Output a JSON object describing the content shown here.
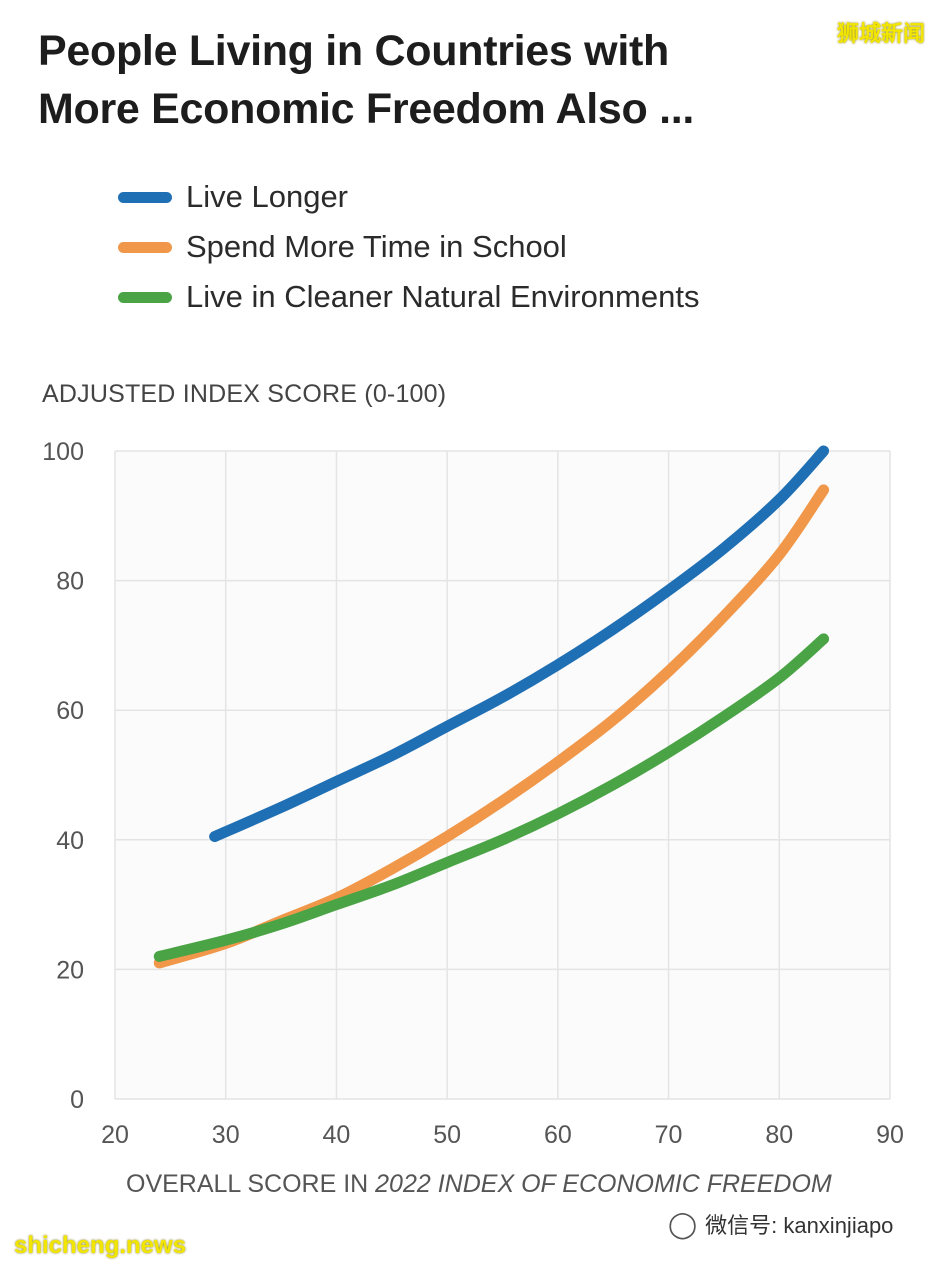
{
  "watermark": {
    "top_right": "狮城新闻",
    "bottom_left": "shicheng.news",
    "wechat_label": "微信号: kanxinjiapo"
  },
  "colors": {
    "live_longer": "#1f6fb5",
    "school": "#f0974a",
    "environment": "#4aa446",
    "grid": "#e4e4e4",
    "axis_text": "#555555"
  },
  "chart_data": {
    "type": "line",
    "title": "People Living in Countries with More Economic Freedom Also ...",
    "title_lines": [
      "People Living in Countries with",
      "More Economic Freedom Also ..."
    ],
    "ylabel": "ADJUSTED INDEX SCORE (0-100)",
    "xlabel_prefix": "OVERALL SCORE IN ",
    "xlabel_italic": "2022 INDEX OF ECONOMIC FREEDOM",
    "xlim": [
      20,
      90
    ],
    "ylim": [
      0,
      100
    ],
    "xticks": [
      20,
      30,
      40,
      50,
      60,
      70,
      80,
      90
    ],
    "yticks": [
      0,
      20,
      40,
      60,
      80,
      100
    ],
    "grid": true,
    "legend_position": "top-left",
    "series": [
      {
        "name": "Live Longer",
        "color_key": "live_longer",
        "x": [
          29,
          35,
          40,
          45,
          50,
          55,
          60,
          65,
          70,
          75,
          80,
          84
        ],
        "y": [
          40.5,
          45,
          49,
          53,
          57.5,
          62,
          67,
          72.5,
          78.5,
          85,
          92.5,
          100
        ]
      },
      {
        "name": "Spend More Time in School",
        "color_key": "school",
        "x": [
          24,
          30,
          35,
          40,
          45,
          50,
          55,
          60,
          65,
          70,
          75,
          80,
          84
        ],
        "y": [
          21,
          24,
          27.5,
          31,
          35.5,
          40.5,
          46,
          52,
          58.5,
          66,
          74.5,
          84,
          94
        ]
      },
      {
        "name": "Live in Cleaner Natural Environments",
        "color_key": "environment",
        "x": [
          24,
          30,
          35,
          40,
          45,
          50,
          55,
          60,
          65,
          70,
          75,
          80,
          84
        ],
        "y": [
          22,
          24.5,
          27,
          30,
          33,
          36.5,
          40,
          44,
          48.5,
          53.5,
          59,
          65,
          71
        ]
      }
    ]
  }
}
